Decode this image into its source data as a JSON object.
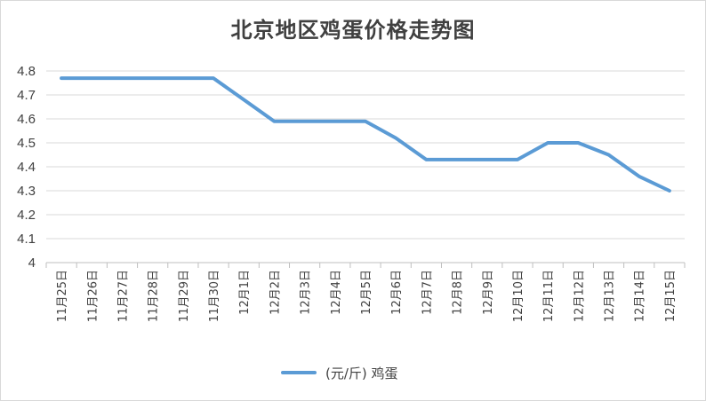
{
  "chart_data": {
    "type": "line",
    "title": "北京地区鸡蛋价格走势图",
    "categories": [
      "11月25日",
      "11月26日",
      "11月27日",
      "11月28日",
      "11月29日",
      "11月30日",
      "12月1日",
      "12月2日",
      "12月3日",
      "12月4日",
      "12月5日",
      "12月6日",
      "12月7日",
      "12月8日",
      "12月9日",
      "12月10日",
      "12月11日",
      "12月12日",
      "12月13日",
      "12月14日",
      "12月15日"
    ],
    "series": [
      {
        "name": "(元/斤) 鸡蛋",
        "values": [
          4.77,
          4.77,
          4.77,
          4.77,
          4.77,
          4.77,
          4.68,
          4.59,
          4.59,
          4.59,
          4.59,
          4.52,
          4.43,
          4.43,
          4.43,
          4.43,
          4.5,
          4.5,
          4.45,
          4.36,
          4.3
        ],
        "color": "#5b9bd5"
      }
    ],
    "ylim": [
      4,
      4.8
    ],
    "yticks": [
      "4",
      "4.1",
      "4.2",
      "4.3",
      "4.4",
      "4.5",
      "4.6",
      "4.7",
      "4.8"
    ],
    "grid": true,
    "legend_position": "bottom"
  }
}
